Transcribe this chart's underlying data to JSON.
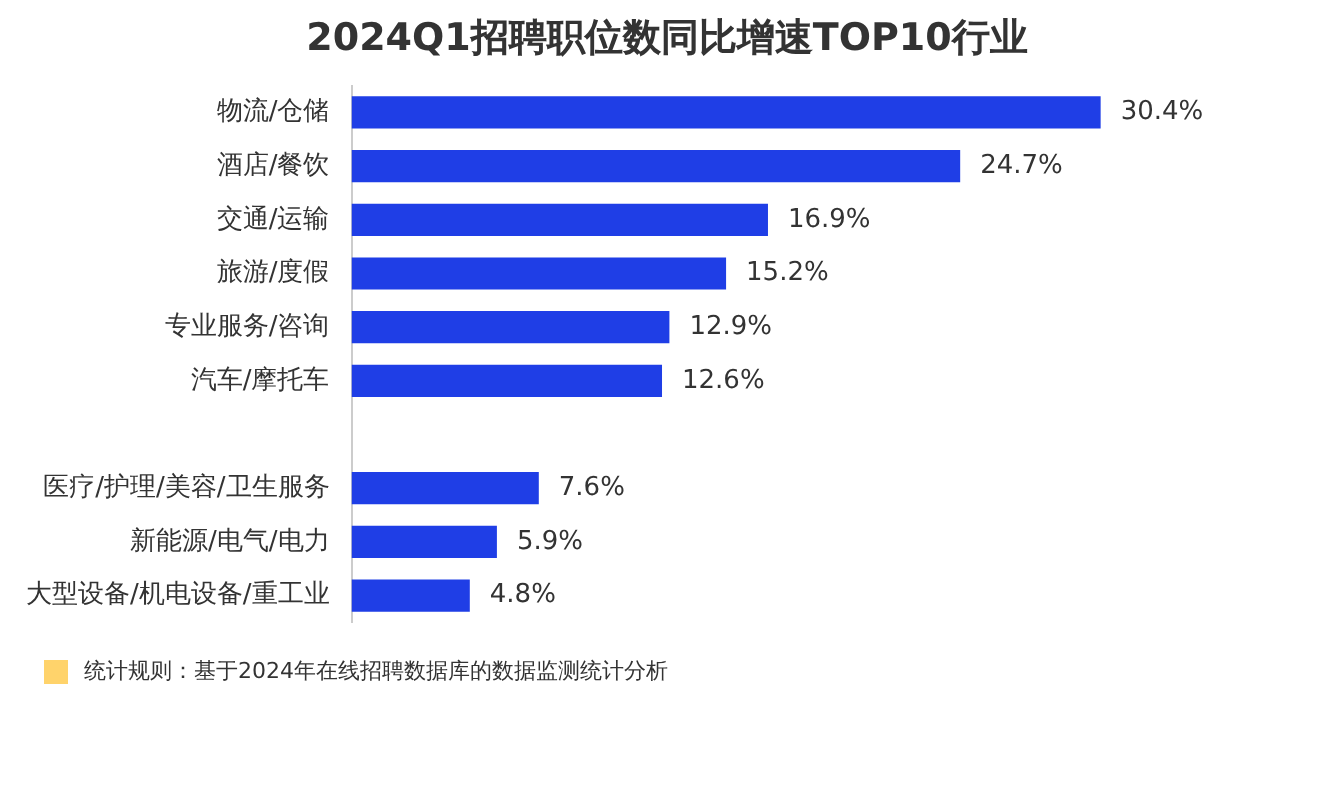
{
  "chart_data": {
    "type": "bar",
    "orientation": "horizontal",
    "title": "2024Q1招聘职位数同比增速TOP10行业",
    "categories": [
      "物流/仓储",
      "酒店/餐饮",
      "交通/运输",
      "旅游/度假",
      "专业服务/咨询",
      "汽车/摩托车",
      null,
      "医疗/护理/美容/卫生服务",
      "新能源/电气/电力",
      "大型设备/机电设备/重工业"
    ],
    "values": [
      30.4,
      24.7,
      16.9,
      15.2,
      12.9,
      12.6,
      null,
      7.6,
      5.9,
      4.8
    ],
    "value_labels": [
      "30.4%",
      "24.7%",
      "16.9%",
      "15.2%",
      "12.9%",
      "12.6%",
      null,
      "7.6%",
      "5.9%",
      "4.8%"
    ],
    "color": "#1f3ee6",
    "annotations": [
      "统计规则：基于2024年在线招聘数据库的数据监测统计分析"
    ]
  }
}
